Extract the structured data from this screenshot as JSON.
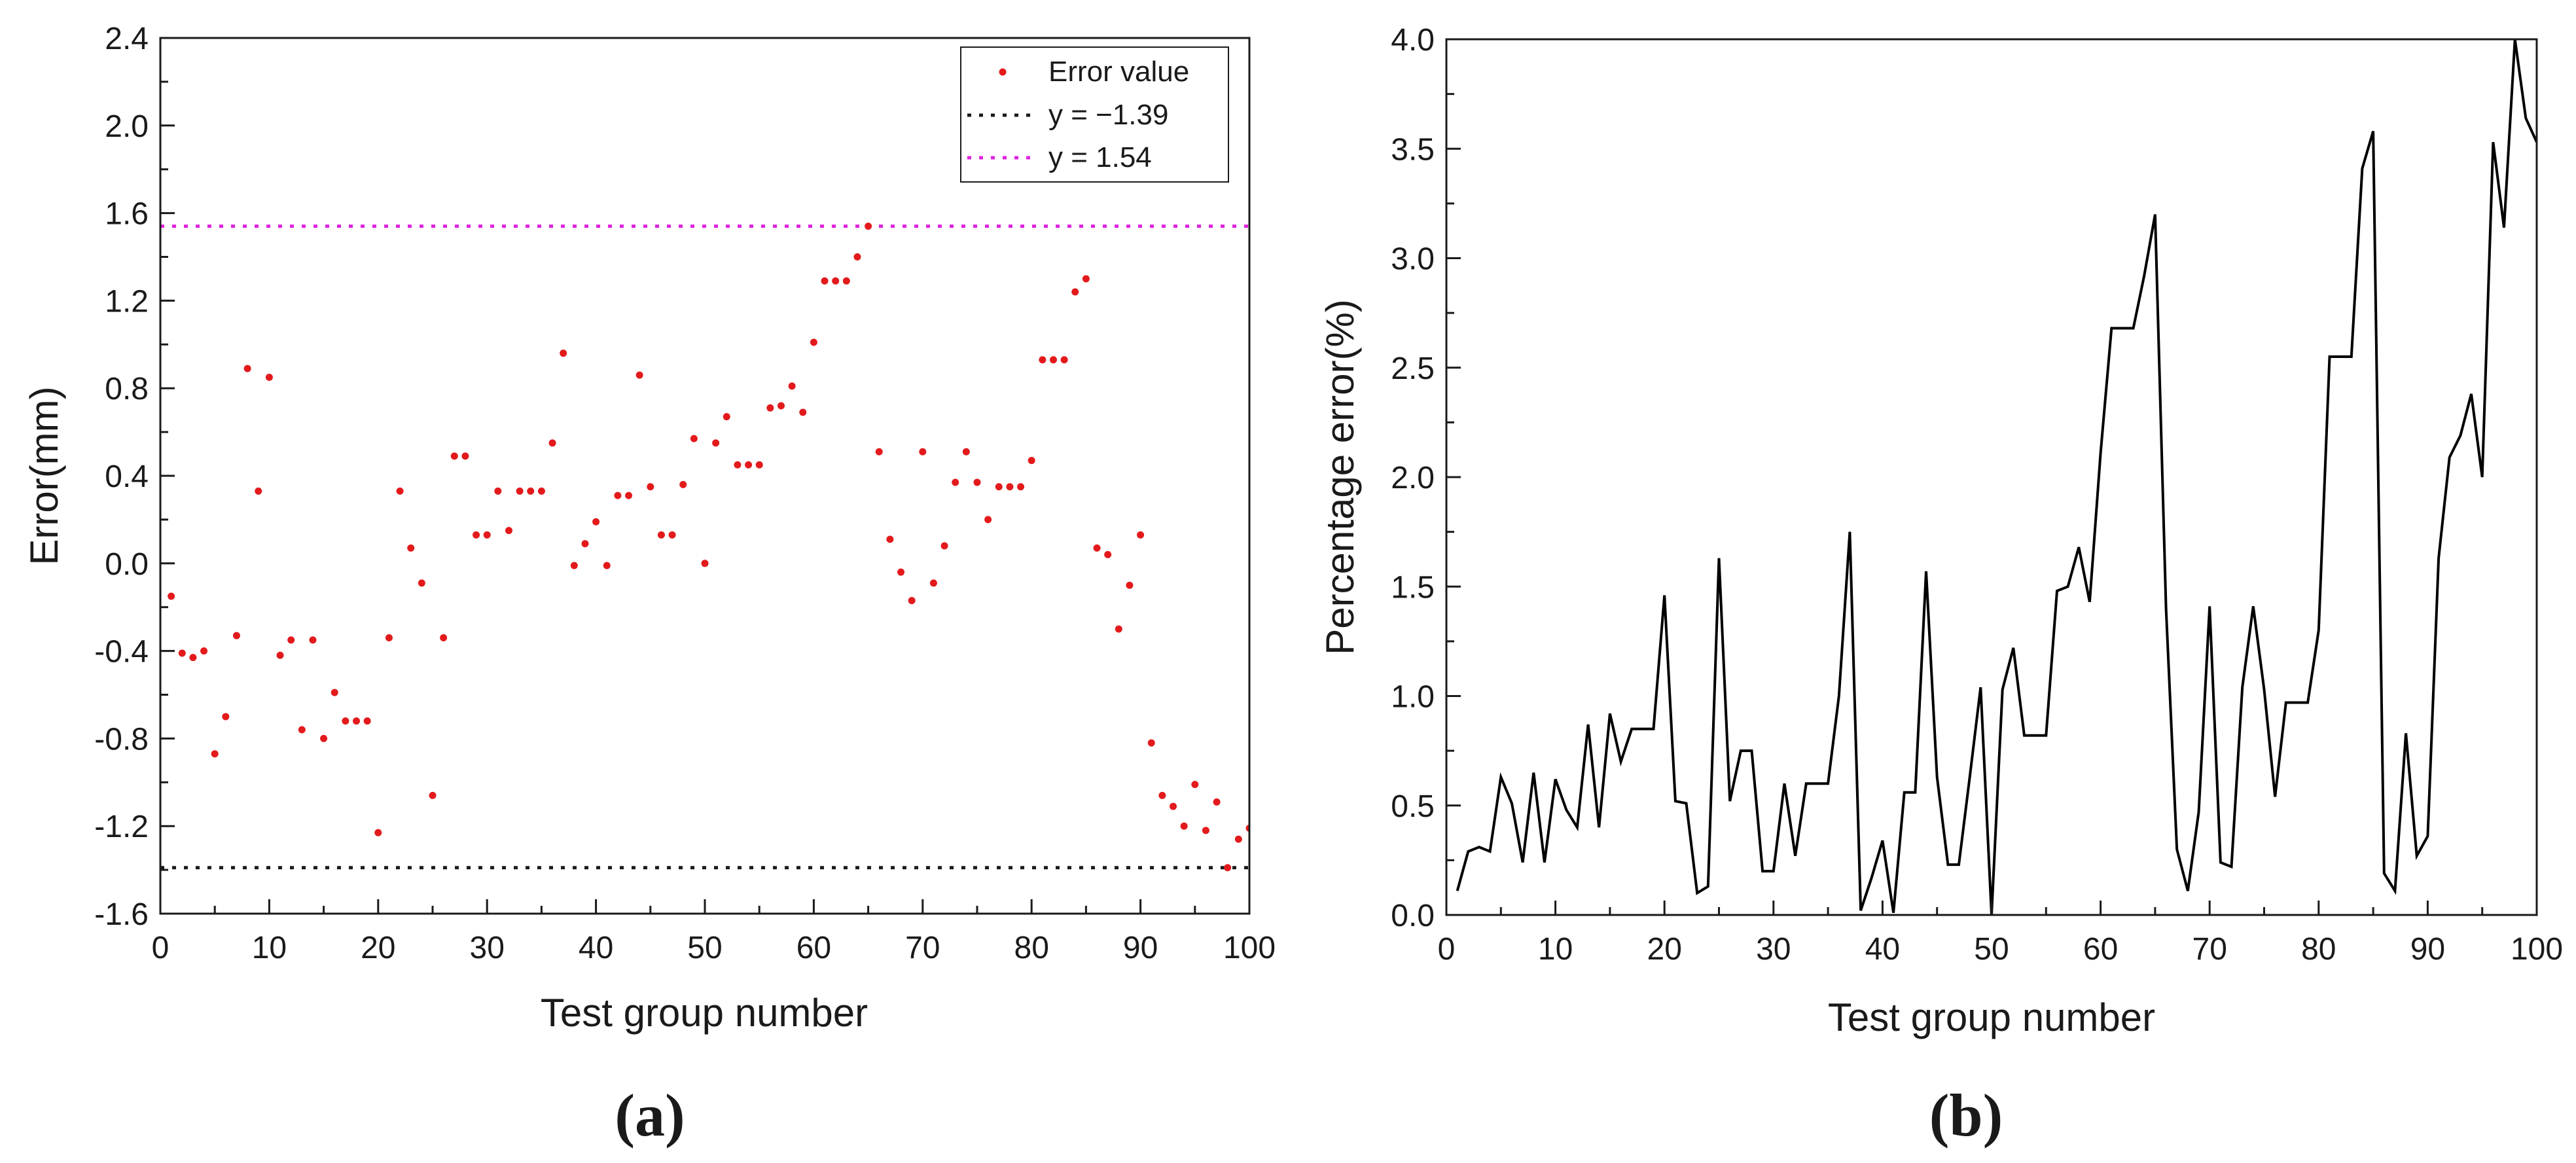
{
  "chart_data": [
    {
      "type": "scatter",
      "panel_label": "(a)",
      "xlabel": "Test group number",
      "ylabel": "Error(mm)",
      "xlim": [
        0,
        100
      ],
      "ylim": [
        -1.6,
        2.4
      ],
      "xticks": [
        0,
        10,
        20,
        30,
        40,
        50,
        60,
        70,
        80,
        90,
        100
      ],
      "yticks": [
        -1.6,
        -1.2,
        -0.8,
        -0.4,
        0.0,
        0.4,
        0.8,
        1.2,
        1.6,
        2.0,
        2.4
      ],
      "ytick_labels": [
        "-1.6",
        "-1.2",
        "-0.8",
        "-0.4",
        "0.0",
        "0.4",
        "0.8",
        "1.2",
        "1.6",
        "2.0",
        "2.4"
      ],
      "grid": false,
      "legend_position": "top-right",
      "series": [
        {
          "name": "Error value",
          "color": "#e31a1c",
          "x": [
            1,
            2,
            3,
            4,
            5,
            6,
            7,
            8,
            9,
            10,
            11,
            12,
            13,
            14,
            15,
            16,
            17,
            18,
            19,
            20,
            21,
            22,
            23,
            24,
            25,
            26,
            27,
            28,
            29,
            30,
            31,
            32,
            33,
            34,
            35,
            36,
            37,
            38,
            39,
            40,
            41,
            42,
            43,
            44,
            45,
            46,
            47,
            48,
            49,
            50,
            51,
            52,
            53,
            54,
            55,
            56,
            57,
            58,
            59,
            60,
            61,
            62,
            63,
            64,
            65,
            66,
            67,
            68,
            69,
            70,
            71,
            72,
            73,
            74,
            75,
            76,
            77,
            78,
            79,
            80,
            81,
            82,
            83,
            84,
            85,
            86,
            87,
            88,
            89,
            90,
            91,
            92,
            93,
            94,
            95,
            96,
            97,
            98,
            99,
            100
          ],
          "y": [
            -0.15,
            -0.41,
            -0.43,
            -0.4,
            -0.87,
            -0.7,
            -0.33,
            0.89,
            0.33,
            0.85,
            -0.42,
            -0.35,
            -0.76,
            -0.35,
            -0.8,
            -0.59,
            -0.72,
            -0.72,
            -0.72,
            -1.23,
            -0.34,
            0.33,
            0.07,
            -0.09,
            -1.06,
            -0.34,
            0.49,
            0.49,
            0.13,
            0.13,
            0.33,
            0.15,
            0.33,
            0.33,
            0.33,
            0.55,
            0.96,
            -0.01,
            0.09,
            0.19,
            -0.01,
            0.31,
            0.31,
            0.86,
            0.35,
            0.13,
            0.13,
            0.36,
            0.57,
            0.0,
            0.55,
            0.67,
            0.45,
            0.45,
            0.45,
            0.71,
            0.72,
            0.81,
            0.69,
            1.01,
            1.29,
            1.29,
            1.29,
            1.4,
            1.54,
            0.51,
            0.11,
            -0.04,
            -0.17,
            0.51,
            -0.09,
            0.08,
            0.37,
            0.51,
            0.37,
            0.2,
            0.35,
            0.35,
            0.35,
            0.47,
            0.93,
            0.93,
            0.93,
            1.24,
            1.3,
            0.07,
            0.04,
            -0.3,
            -0.1,
            0.13,
            -0.82,
            -1.06,
            -1.11,
            -1.2,
            -1.01,
            -1.22,
            -1.09,
            -1.39,
            -1.26,
            -1.21
          ]
        }
      ],
      "reference_lines": [
        {
          "label": "y = −1.39",
          "y": -1.39,
          "color": "#1a1a1a"
        },
        {
          "label": "y = 1.54",
          "y": 1.54,
          "color": "#e020e0"
        }
      ]
    },
    {
      "type": "line",
      "panel_label": "(b)",
      "xlabel": "Test group number",
      "ylabel": "Percentage error(%)",
      "xlim": [
        0,
        100
      ],
      "ylim": [
        0.0,
        4.0
      ],
      "xticks": [
        0,
        10,
        20,
        30,
        40,
        50,
        60,
        70,
        80,
        90,
        100
      ],
      "yticks": [
        0.0,
        0.5,
        1.0,
        1.5,
        2.0,
        2.5,
        3.0,
        3.5,
        4.0
      ],
      "ytick_labels": [
        "0.0",
        "0.5",
        "1.0",
        "1.5",
        "2.0",
        "2.5",
        "3.0",
        "3.5",
        "4.0"
      ],
      "grid": false,
      "series": [
        {
          "name": "Percentage error",
          "color": "#000000",
          "x": [
            1,
            2,
            3,
            4,
            5,
            6,
            7,
            8,
            9,
            10,
            11,
            12,
            13,
            14,
            15,
            16,
            17,
            18,
            19,
            20,
            21,
            22,
            23,
            24,
            25,
            26,
            27,
            28,
            29,
            30,
            31,
            32,
            33,
            34,
            35,
            36,
            37,
            38,
            39,
            40,
            41,
            42,
            43,
            44,
            45,
            46,
            47,
            48,
            49,
            50,
            51,
            52,
            53,
            54,
            55,
            56,
            57,
            58,
            59,
            60,
            61,
            62,
            63,
            64,
            65,
            66,
            67,
            68,
            69,
            70,
            71,
            72,
            73,
            74,
            75,
            76,
            77,
            78,
            79,
            80,
            81,
            82,
            83,
            84,
            85,
            86,
            87,
            88,
            89,
            90,
            91,
            92,
            93,
            94,
            95,
            96,
            97,
            98,
            99,
            100
          ],
          "y": [
            0.11,
            0.29,
            0.31,
            0.29,
            0.63,
            0.51,
            0.24,
            0.65,
            0.24,
            0.62,
            0.48,
            0.4,
            0.87,
            0.4,
            0.92,
            0.7,
            0.85,
            0.85,
            0.85,
            1.46,
            0.52,
            0.51,
            0.1,
            0.13,
            1.63,
            0.52,
            0.75,
            0.75,
            0.2,
            0.2,
            0.6,
            0.27,
            0.6,
            0.6,
            0.6,
            1.0,
            1.75,
            0.02,
            0.17,
            0.34,
            0.01,
            0.56,
            0.56,
            1.57,
            0.63,
            0.23,
            0.23,
            0.63,
            1.04,
            0.0,
            1.03,
            1.22,
            0.82,
            0.82,
            0.82,
            1.48,
            1.5,
            1.68,
            1.43,
            2.11,
            2.68,
            2.68,
            2.68,
            2.92,
            3.2,
            1.4,
            0.3,
            0.11,
            0.47,
            1.41,
            0.24,
            0.22,
            1.04,
            1.41,
            1.03,
            0.54,
            0.97,
            0.97,
            0.97,
            1.3,
            2.55,
            2.55,
            2.55,
            3.41,
            3.58,
            0.19,
            0.11,
            0.83,
            0.27,
            0.36,
            1.63,
            2.09,
            2.19,
            2.38,
            2.0,
            3.53,
            3.14,
            4.0,
            3.64,
            3.53
          ]
        }
      ]
    }
  ]
}
